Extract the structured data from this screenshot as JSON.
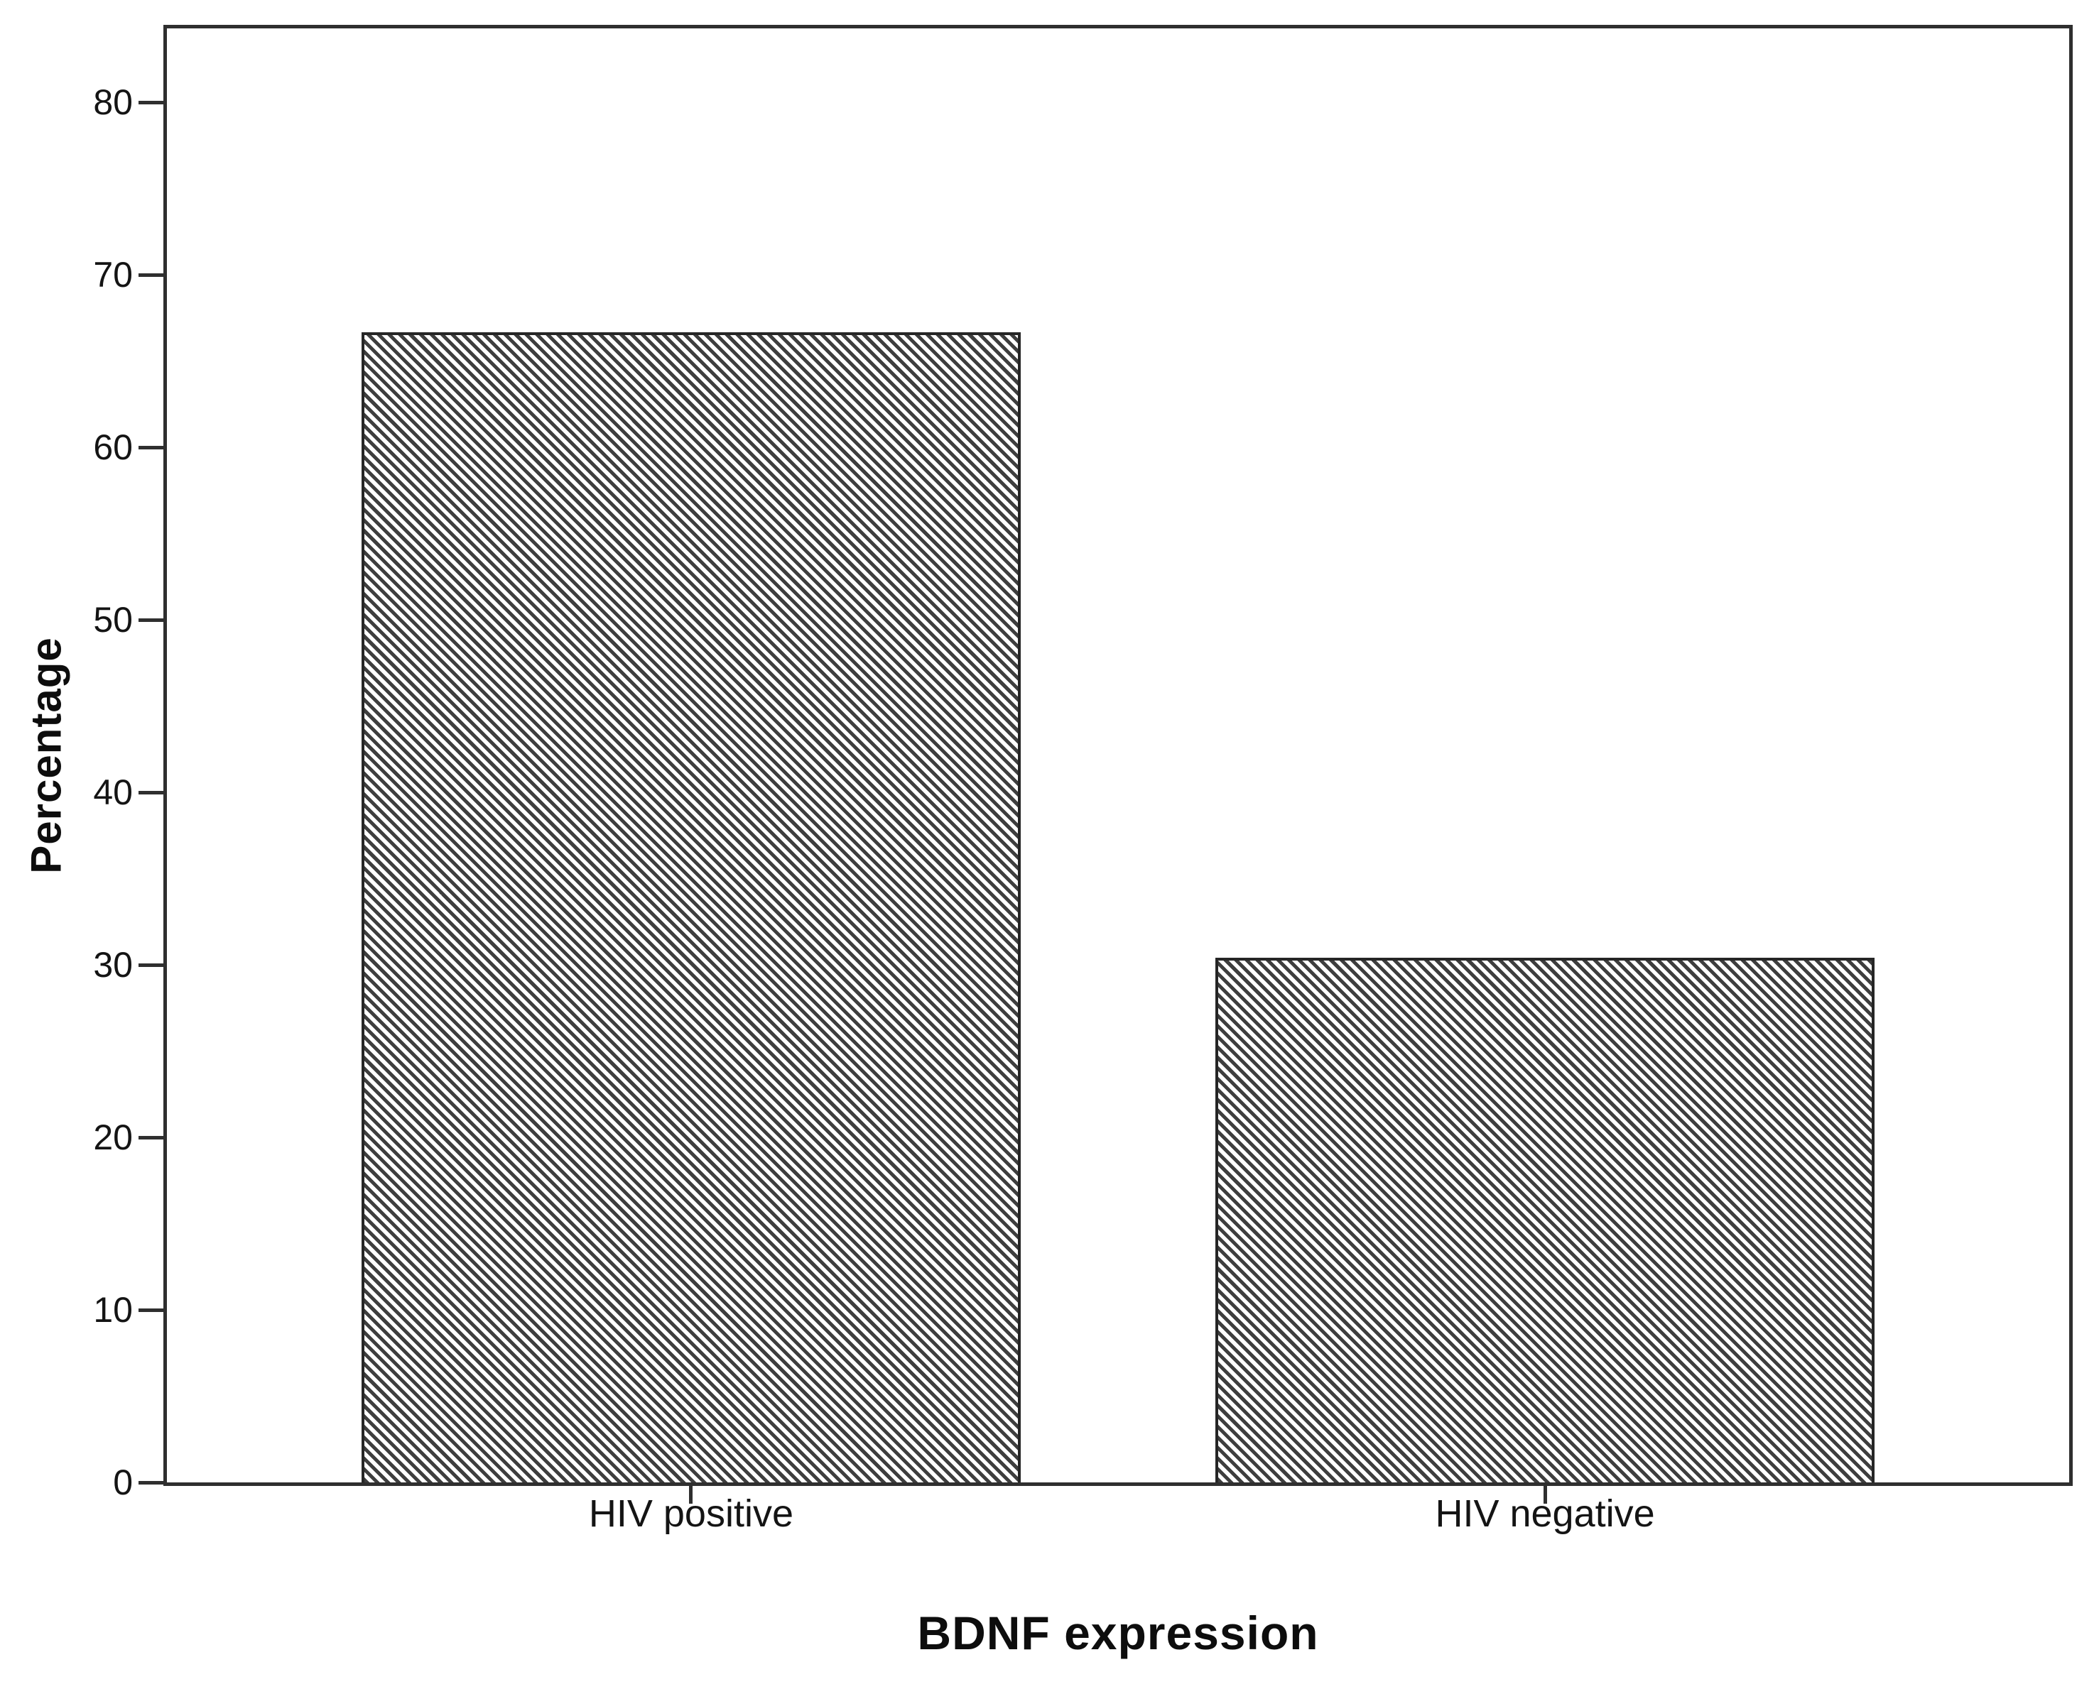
{
  "chart_data": {
    "type": "bar",
    "title": "",
    "xlabel": "BDNF expression",
    "ylabel": "Percentage",
    "categories": [
      "HIV positive",
      "HIV negative"
    ],
    "values": [
      66.7,
      30.4
    ],
    "ylim": [
      0,
      84.3
    ],
    "yticks": [
      0,
      10,
      20,
      30,
      40,
      50,
      60,
      70,
      80
    ],
    "grid": false,
    "legend": "none",
    "bar_style": {
      "fill": "diagonal-hatch",
      "hatch_direction": "backslash",
      "hatch_color": "#3e3e3e",
      "outline_color": "#262626",
      "background": "#ffffff"
    },
    "frame_color": "#2f2f2f",
    "tick_label_color": "#141414"
  }
}
